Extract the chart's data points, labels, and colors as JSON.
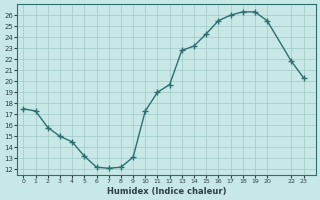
{
  "x": [
    0,
    1,
    2,
    3,
    4,
    5,
    6,
    7,
    8,
    9,
    10,
    11,
    12,
    13,
    14,
    15,
    16,
    17,
    18,
    19,
    20,
    22,
    23
  ],
  "y": [
    17.5,
    17.3,
    15.8,
    15.0,
    14.5,
    13.2,
    12.2,
    12.1,
    12.2,
    13.1,
    17.3,
    19.0,
    19.7,
    22.8,
    23.2,
    24.3,
    25.5,
    26.0,
    26.3,
    26.3,
    25.5,
    21.8,
    20.3
  ],
  "line_color": "#2d6e6e",
  "marker": "+",
  "bg_color": "#c8e8e8",
  "grid_color": "#a0c8c8",
  "xlabel": "Humidex (Indice chaleur)",
  "ylabel_ticks": [
    12,
    13,
    14,
    15,
    16,
    17,
    18,
    19,
    20,
    21,
    22,
    23,
    24,
    25,
    26
  ],
  "ylim": [
    11.5,
    27.0
  ],
  "xlim": [
    -0.5,
    24.0
  ],
  "font_color": "#2d4040",
  "axis_color": "#2d6e6e"
}
